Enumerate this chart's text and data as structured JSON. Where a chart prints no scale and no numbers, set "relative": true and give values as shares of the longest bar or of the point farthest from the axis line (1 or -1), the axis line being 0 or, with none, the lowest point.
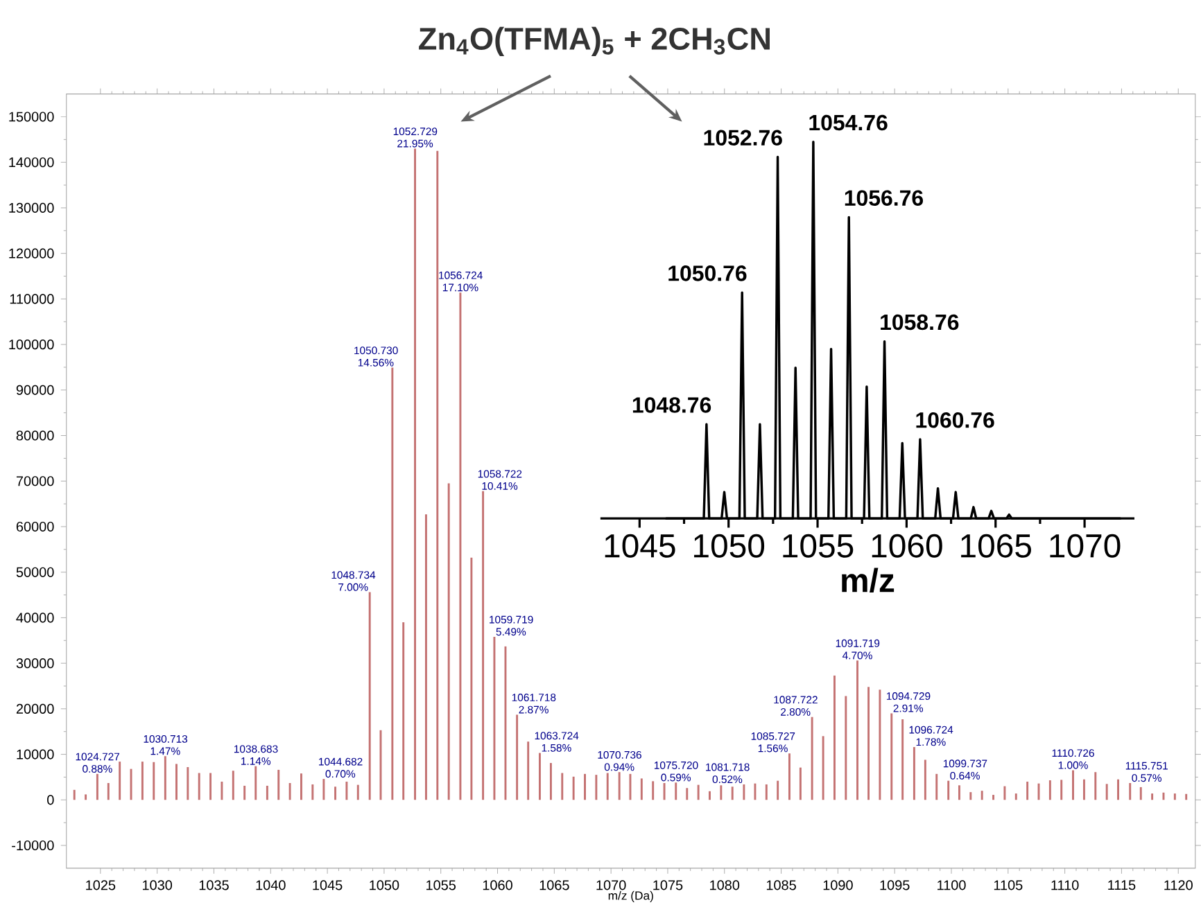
{
  "chart_data": [
    {
      "type": "bar",
      "title": "Zn$_{4}$O(TFMA)$_{5}$ + 2CH$_{3}$CN",
      "xlabel": "m/z (Da)",
      "color": "#c47272",
      "x": [
        1022.7,
        1023.7,
        1024.727,
        1025.7,
        1026.7,
        1027.7,
        1028.7,
        1029.7,
        1030.713,
        1031.7,
        1032.7,
        1033.7,
        1034.7,
        1035.7,
        1036.7,
        1037.7,
        1038.683,
        1039.7,
        1040.7,
        1041.7,
        1042.7,
        1043.7,
        1044.682,
        1045.7,
        1046.7,
        1047.7,
        1048.734,
        1049.7,
        1050.73,
        1051.7,
        1052.729,
        1053.7,
        1054.7,
        1055.7,
        1056.724,
        1057.7,
        1058.722,
        1059.719,
        1060.7,
        1061.718,
        1062.7,
        1063.724,
        1064.7,
        1065.7,
        1066.7,
        1067.7,
        1068.7,
        1069.7,
        1070.736,
        1071.7,
        1072.7,
        1073.7,
        1074.7,
        1075.72,
        1076.7,
        1077.7,
        1078.7,
        1079.7,
        1080.7,
        1081.718,
        1082.7,
        1083.7,
        1084.7,
        1085.727,
        1086.7,
        1087.722,
        1088.7,
        1089.7,
        1090.7,
        1091.719,
        1092.7,
        1093.7,
        1094.729,
        1095.7,
        1096.724,
        1097.7,
        1098.7,
        1099.737,
        1100.7,
        1101.7,
        1102.7,
        1103.7,
        1104.7,
        1105.7,
        1106.7,
        1107.7,
        1108.7,
        1109.7,
        1110.726,
        1111.7,
        1112.7,
        1113.7,
        1114.7,
        1115.751,
        1116.7,
        1117.7,
        1118.7,
        1119.7,
        1120.7
      ],
      "values": [
        2200,
        1200,
        5700,
        3700,
        8400,
        6800,
        8400,
        8300,
        9600,
        7900,
        7200,
        5900,
        5900,
        4000,
        6400,
        3100,
        7400,
        3100,
        6600,
        3700,
        5800,
        3400,
        4600,
        2900,
        4000,
        3300,
        45600,
        15300,
        94900,
        39000,
        143000,
        62700,
        142500,
        69500,
        111400,
        53200,
        67800,
        35800,
        33700,
        18700,
        12800,
        10300,
        8100,
        5900,
        5100,
        5700,
        5500,
        5900,
        6100,
        5700,
        4700,
        4100,
        3700,
        3800,
        2600,
        3300,
        1900,
        3200,
        2900,
        3400,
        3600,
        3400,
        4200,
        10200,
        7100,
        18200,
        14000,
        27300,
        22800,
        30600,
        24800,
        24200,
        19000,
        17700,
        11600,
        8800,
        5700,
        4200,
        3200,
        1700,
        2000,
        1100,
        3000,
        1400,
        4000,
        3600,
        4300,
        4400,
        6500,
        4500,
        6100,
        3500,
        4500,
        3700,
        2800,
        1400,
        1600,
        1400,
        1300
      ],
      "xlim": [
        1022,
        1121.5
      ],
      "ylim": [
        -15000,
        155000
      ],
      "xticks": [
        1025,
        1030,
        1035,
        1040,
        1045,
        1050,
        1055,
        1060,
        1065,
        1070,
        1075,
        1080,
        1085,
        1090,
        1095,
        1100,
        1105,
        1110,
        1115,
        1120
      ],
      "yticks": [
        -10000,
        0,
        10000,
        20000,
        30000,
        40000,
        50000,
        60000,
        70000,
        80000,
        90000,
        100000,
        110000,
        120000,
        130000,
        140000,
        150000
      ],
      "annotations": [
        {
          "text": "1024.727 0.88%",
          "x": 1024.727,
          "y": 5700
        },
        {
          "text": "1030.713 1.47%",
          "x": 1030.713,
          "y": 9600
        },
        {
          "text": "1038.683 1.14%",
          "x": 1038.683,
          "y": 7400
        },
        {
          "text": "1044.682 0.70%",
          "x": 1044.682,
          "y": 4600
        },
        {
          "text": "1048.734 7.00%",
          "x": 1048.734,
          "y": 45600
        },
        {
          "text": "1050.730 14.56%",
          "x": 1050.73,
          "y": 94900
        },
        {
          "text": "1052.729 21.95%",
          "x": 1052.729,
          "y": 143000
        },
        {
          "text": "1056.724 17.10%",
          "x": 1056.724,
          "y": 111400
        },
        {
          "text": "1058.722 10.41%",
          "x": 1058.722,
          "y": 67800
        },
        {
          "text": "1059.719 5.49%",
          "x": 1059.719,
          "y": 35800
        },
        {
          "text": "1061.718 2.87%",
          "x": 1061.718,
          "y": 18700
        },
        {
          "text": "1063.724 1.58%",
          "x": 1063.724,
          "y": 10300
        },
        {
          "text": "1070.736 0.94%",
          "x": 1070.736,
          "y": 6100
        },
        {
          "text": "1075.720 0.59%",
          "x": 1075.72,
          "y": 3800
        },
        {
          "text": "1081.718 0.52%",
          "x": 1081.718,
          "y": 3400
        },
        {
          "text": "1085.727 1.56%",
          "x": 1085.727,
          "y": 10200
        },
        {
          "text": "1087.722 2.80%",
          "x": 1087.722,
          "y": 18200
        },
        {
          "text": "1091.719 4.70%",
          "x": 1091.719,
          "y": 30600
        },
        {
          "text": "1094.729 2.91%",
          "x": 1094.729,
          "y": 19000
        },
        {
          "text": "1096.724 1.78%",
          "x": 1096.724,
          "y": 11600
        },
        {
          "text": "1099.737 0.64%",
          "x": 1099.737,
          "y": 4200
        },
        {
          "text": "1110.726 1.00%",
          "x": 1110.726,
          "y": 6500
        },
        {
          "text": "1115.751 0.57%",
          "x": 1115.751,
          "y": 3700
        }
      ]
    },
    {
      "type": "line",
      "relative": true,
      "xlabel": "m/z",
      "color": "#000000",
      "xlim": [
        1042.8,
        1072.8
      ],
      "xticks": [
        1045,
        1050,
        1055,
        1060,
        1065,
        1070
      ],
      "x": [
        1046.5,
        1048.61,
        1048.76,
        1048.91,
        1049.61,
        1049.76,
        1049.91,
        1050.61,
        1050.76,
        1050.91,
        1051.61,
        1051.76,
        1051.91,
        1052.61,
        1052.76,
        1052.91,
        1053.61,
        1053.76,
        1053.91,
        1054.61,
        1054.76,
        1054.91,
        1055.61,
        1055.76,
        1055.91,
        1056.61,
        1056.76,
        1056.91,
        1057.61,
        1057.76,
        1057.91,
        1058.61,
        1058.76,
        1058.91,
        1059.61,
        1059.76,
        1059.91,
        1060.61,
        1060.76,
        1060.91,
        1061.61,
        1061.76,
        1061.91,
        1062.61,
        1062.76,
        1062.91,
        1063.61,
        1063.76,
        1063.91,
        1064.61,
        1064.76,
        1064.91,
        1065.61,
        1065.76,
        1065.91,
        1072
      ],
      "values": [
        0,
        0,
        0.25,
        0,
        0,
        0.07,
        0,
        0,
        0.6,
        0,
        0,
        0.25,
        0,
        0,
        0.96,
        0,
        0,
        0.4,
        0,
        0,
        1,
        0,
        0,
        0.45,
        0,
        0,
        0.8,
        0,
        0,
        0.35,
        0,
        0,
        0.47,
        0,
        0,
        0.2,
        0,
        0,
        0.21,
        0,
        0,
        0.08,
        0,
        0,
        0.07,
        0,
        0,
        0.03,
        0,
        0,
        0.02,
        0,
        0,
        0.01,
        0,
        0
      ],
      "annotations": [
        {
          "text": "1048.76",
          "x": 1048.76,
          "y": 0.25
        },
        {
          "text": "1050.76",
          "x": 1050.76,
          "y": 0.6
        },
        {
          "text": "1052.76",
          "x": 1052.76,
          "y": 0.96
        },
        {
          "text": "1054.76",
          "x": 1054.76,
          "y": 1
        },
        {
          "text": "1056.76",
          "x": 1056.76,
          "y": 0.8
        },
        {
          "text": "1058.76",
          "x": 1058.76,
          "y": 0.47
        },
        {
          "text": "1060.76",
          "x": 1060.76,
          "y": 0.21
        }
      ]
    }
  ]
}
